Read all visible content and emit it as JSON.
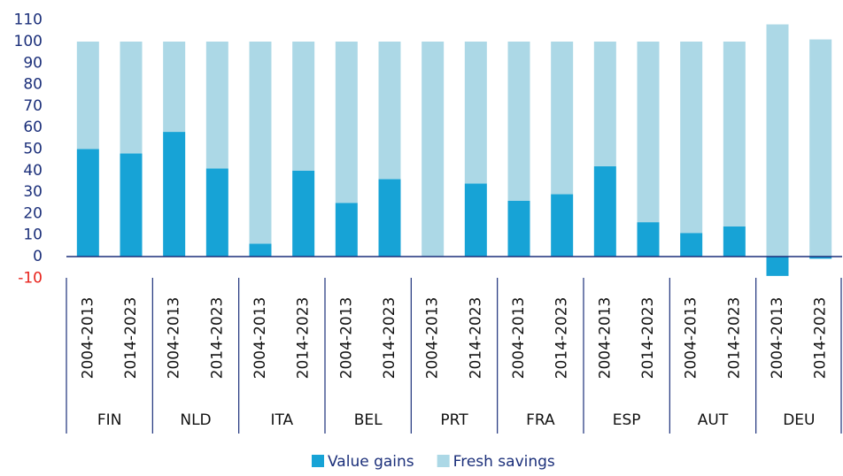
{
  "chart_data": {
    "type": "stacked_bar",
    "categories": [
      "2004-2013",
      "2014-2023",
      "2004-2013",
      "2014-2023",
      "2004-2013",
      "2014-2023",
      "2004-2013",
      "2014-2023",
      "2004-2013",
      "2014-2023",
      "2004-2013",
      "2014-2023",
      "2004-2013",
      "2014-2023",
      "2004-2013",
      "2014-2023",
      "2004-2013",
      "2014-2023"
    ],
    "groups": [
      "FIN",
      "NLD",
      "ITA",
      "BEL",
      "PRT",
      "FRA",
      "ESP",
      "AUT",
      "DEU"
    ],
    "series": [
      {
        "name": "Value gains",
        "color": "#17a3d6",
        "values": [
          50,
          48,
          58,
          41,
          6,
          40,
          25,
          36,
          0,
          34,
          26,
          29,
          42,
          16,
          11,
          14,
          -9,
          -1
        ]
      },
      {
        "name": "Fresh savings",
        "color": "#acd8e6",
        "values": [
          50,
          52,
          42,
          59,
          94,
          60,
          75,
          64,
          100,
          66,
          74,
          71,
          58,
          84,
          89,
          86,
          108,
          101
        ]
      }
    ],
    "ylim": [
      -10,
      110
    ],
    "yticks": [
      -10,
      0,
      10,
      20,
      30,
      40,
      50,
      60,
      70,
      80,
      90,
      100,
      110
    ],
    "negative_tick_color": "#e8231c",
    "axis_color": "#1b2f7a"
  }
}
